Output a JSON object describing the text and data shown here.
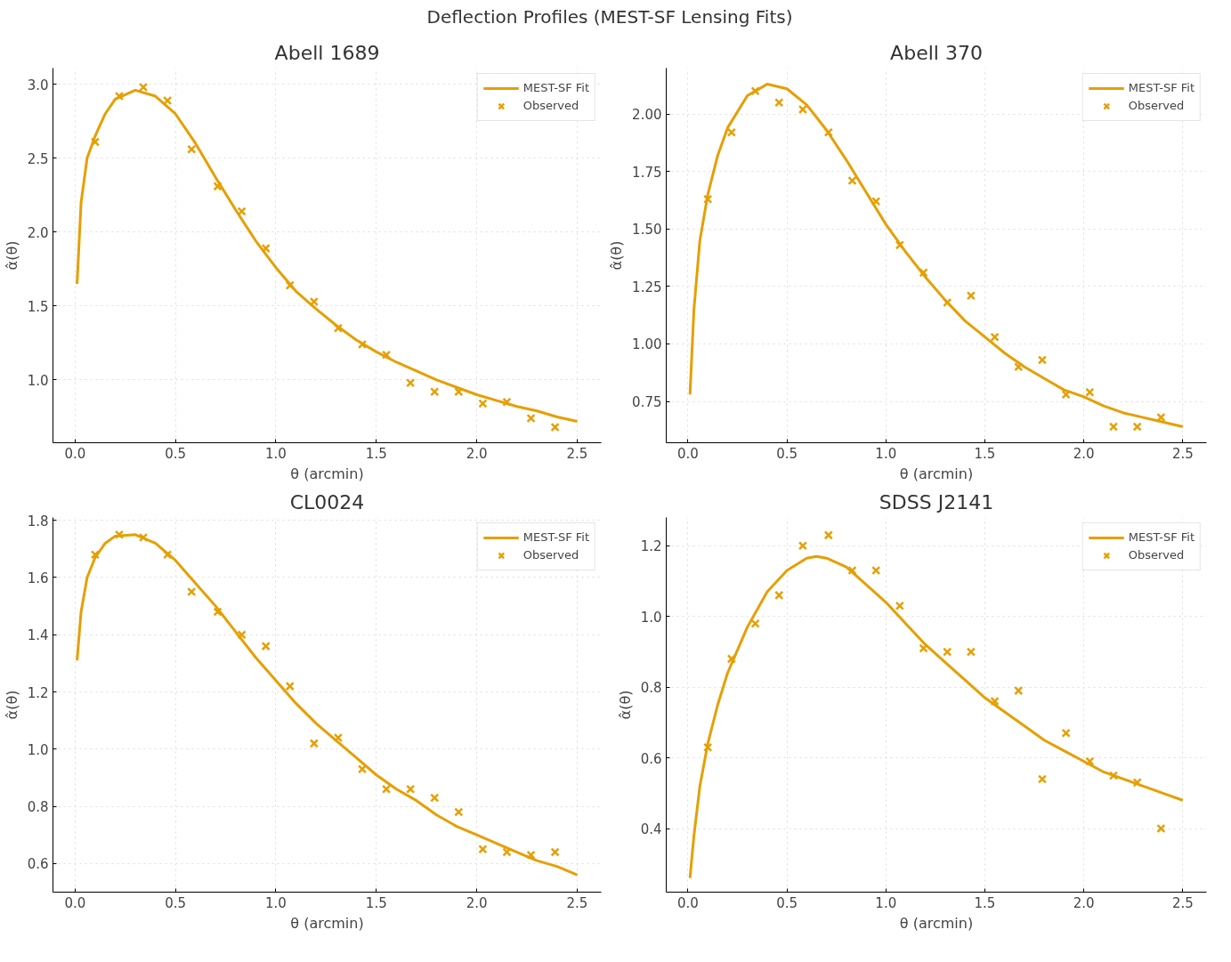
{
  "chart_data": [
    {
      "type": "scatter",
      "title": "Abell 1689",
      "xlabel": "θ (arcmin)",
      "ylabel": "α̂(θ)",
      "annotations": [
        "Deflection Profiles (MEST-SF Lensing Fits)"
      ],
      "xlim": [
        -0.11,
        2.62
      ],
      "ylim": [
        0.575,
        3.11
      ],
      "xticks": [
        {
          "value": 0,
          "label": "0.0"
        },
        0.5,
        {
          "value": 1,
          "label": "1.0"
        },
        1.5,
        {
          "value": 2,
          "label": "2.0"
        },
        2.5
      ],
      "yticks": [
        {
          "value": 1,
          "label": "1.0"
        },
        1.5,
        {
          "value": 2,
          "label": "2.0"
        },
        2.5,
        {
          "value": 3,
          "label": "3.0"
        }
      ],
      "grid": true,
      "legend": "top right",
      "series": [
        {
          "name": "MEST-SF Fit",
          "type": "line",
          "color": "#e69f00",
          "line_style": "solid",
          "x": [
            0.01,
            0.03,
            0.06,
            0.1,
            0.15,
            0.2,
            0.3,
            0.4,
            0.5,
            0.6,
            0.7,
            0.8,
            0.9,
            1.0,
            1.1,
            1.2,
            1.3,
            1.4,
            1.5,
            1.6,
            1.7,
            1.8,
            1.9,
            2.0,
            2.1,
            2.2,
            2.3,
            2.4,
            2.5
          ],
          "values": [
            1.65,
            2.2,
            2.5,
            2.65,
            2.8,
            2.9,
            2.96,
            2.92,
            2.8,
            2.6,
            2.37,
            2.15,
            1.94,
            1.76,
            1.6,
            1.48,
            1.37,
            1.27,
            1.19,
            1.12,
            1.06,
            1.0,
            0.95,
            0.9,
            0.86,
            0.82,
            0.79,
            0.75,
            0.72
          ]
        },
        {
          "name": "Observed",
          "marker": "cross",
          "color": "#e69f00",
          "x": [
            0.1,
            0.22,
            0.34,
            0.46,
            0.58,
            0.71,
            0.83,
            0.95,
            1.07,
            1.19,
            1.31,
            1.43,
            1.55,
            1.67,
            1.79,
            1.91,
            2.03,
            2.15,
            2.27,
            2.39
          ],
          "values": [
            2.61,
            2.92,
            2.98,
            2.89,
            2.56,
            2.31,
            2.14,
            1.89,
            1.64,
            1.53,
            1.35,
            1.24,
            1.17,
            0.98,
            0.92,
            0.92,
            0.84,
            0.85,
            0.74,
            0.68
          ]
        }
      ]
    },
    {
      "type": "scatter",
      "title": "Abell 370",
      "xlabel": "θ (arcmin)",
      "ylabel": "α̂(θ)",
      "xlim": [
        -0.11,
        2.62
      ],
      "ylim": [
        0.57,
        2.2
      ],
      "xticks": [
        {
          "value": 0,
          "label": "0.0"
        },
        0.5,
        {
          "value": 1,
          "label": "1.0"
        },
        1.5,
        {
          "value": 2,
          "label": "2.0"
        },
        2.5
      ],
      "yticks": [
        0.75,
        {
          "value": 1,
          "label": "1.00"
        },
        1.25,
        {
          "value": 1.5,
          "label": "1.50"
        },
        1.75,
        {
          "value": 2,
          "label": "2.00"
        }
      ],
      "grid": true,
      "legend": "top right",
      "series": [
        {
          "name": "MEST-SF Fit",
          "type": "line",
          "color": "#e69f00",
          "line_style": "solid",
          "x": [
            0.01,
            0.03,
            0.06,
            0.1,
            0.15,
            0.2,
            0.3,
            0.4,
            0.5,
            0.6,
            0.7,
            0.8,
            0.9,
            1.0,
            1.1,
            1.2,
            1.3,
            1.4,
            1.5,
            1.6,
            1.7,
            1.8,
            1.9,
            2.0,
            2.1,
            2.2,
            2.3,
            2.4,
            2.5
          ],
          "values": [
            0.78,
            1.15,
            1.45,
            1.65,
            1.82,
            1.94,
            2.08,
            2.13,
            2.11,
            2.04,
            1.93,
            1.8,
            1.66,
            1.52,
            1.4,
            1.29,
            1.19,
            1.1,
            1.03,
            0.96,
            0.9,
            0.85,
            0.8,
            0.77,
            0.73,
            0.7,
            0.68,
            0.66,
            0.64
          ]
        },
        {
          "name": "Observed",
          "marker": "cross",
          "color": "#e69f00",
          "x": [
            0.1,
            0.22,
            0.34,
            0.46,
            0.58,
            0.71,
            0.83,
            0.95,
            1.07,
            1.19,
            1.31,
            1.43,
            1.55,
            1.67,
            1.79,
            1.91,
            2.03,
            2.15,
            2.27,
            2.39
          ],
          "values": [
            1.63,
            1.92,
            2.1,
            2.05,
            2.02,
            1.92,
            1.71,
            1.62,
            1.43,
            1.31,
            1.18,
            1.21,
            1.03,
            0.9,
            0.93,
            0.78,
            0.79,
            0.64,
            0.64,
            0.68
          ]
        }
      ]
    },
    {
      "type": "scatter",
      "title": "CL0024",
      "xlabel": "θ (arcmin)",
      "ylabel": "α̂(θ)",
      "xlim": [
        -0.11,
        2.62
      ],
      "ylim": [
        0.5,
        1.81
      ],
      "xticks": [
        {
          "value": 0,
          "label": "0.0"
        },
        0.5,
        {
          "value": 1,
          "label": "1.0"
        },
        1.5,
        {
          "value": 2,
          "label": "2.0"
        },
        2.5
      ],
      "yticks": [
        0.6,
        0.8,
        {
          "value": 1,
          "label": "1.0"
        },
        1.2,
        1.4,
        1.6,
        1.8
      ],
      "grid": true,
      "legend": "top right",
      "series": [
        {
          "name": "MEST-SF Fit",
          "type": "line",
          "color": "#e69f00",
          "line_style": "solid",
          "x": [
            0.01,
            0.03,
            0.06,
            0.1,
            0.15,
            0.2,
            0.3,
            0.4,
            0.5,
            0.6,
            0.7,
            0.8,
            0.9,
            1.0,
            1.1,
            1.2,
            1.3,
            1.4,
            1.5,
            1.6,
            1.7,
            1.8,
            1.9,
            2.0,
            2.1,
            2.2,
            2.3,
            2.4,
            2.5
          ],
          "values": [
            1.31,
            1.48,
            1.6,
            1.67,
            1.72,
            1.745,
            1.75,
            1.72,
            1.66,
            1.58,
            1.5,
            1.41,
            1.32,
            1.24,
            1.16,
            1.09,
            1.03,
            0.97,
            0.91,
            0.86,
            0.82,
            0.77,
            0.73,
            0.7,
            0.67,
            0.64,
            0.61,
            0.59,
            0.56
          ]
        },
        {
          "name": "Observed",
          "marker": "cross",
          "color": "#e69f00",
          "x": [
            0.1,
            0.22,
            0.34,
            0.46,
            0.58,
            0.71,
            0.83,
            0.95,
            1.07,
            1.19,
            1.31,
            1.43,
            1.55,
            1.67,
            1.79,
            1.91,
            2.03,
            2.15,
            2.27,
            2.39
          ],
          "values": [
            1.68,
            1.75,
            1.74,
            1.68,
            1.55,
            1.48,
            1.4,
            1.36,
            1.22,
            1.02,
            1.04,
            0.93,
            0.86,
            0.86,
            0.83,
            0.78,
            0.65,
            0.64,
            0.63,
            0.64
          ]
        }
      ]
    },
    {
      "type": "scatter",
      "title": "SDSS J2141",
      "xlabel": "θ (arcmin)",
      "ylabel": "α̂(θ)",
      "xlim": [
        -0.11,
        2.62
      ],
      "ylim": [
        0.22,
        1.28
      ],
      "xticks": [
        {
          "value": 0,
          "label": "0.0"
        },
        0.5,
        {
          "value": 1,
          "label": "1.0"
        },
        1.5,
        {
          "value": 2,
          "label": "2.0"
        },
        2.5
      ],
      "yticks": [
        0.4,
        0.6,
        0.8,
        {
          "value": 1,
          "label": "1.0"
        },
        1.2
      ],
      "grid": true,
      "legend": "top right",
      "series": [
        {
          "name": "MEST-SF Fit",
          "type": "line",
          "color": "#e69f00",
          "line_style": "solid",
          "x": [
            0.01,
            0.03,
            0.06,
            0.1,
            0.15,
            0.2,
            0.3,
            0.4,
            0.5,
            0.6,
            0.65,
            0.7,
            0.8,
            0.9,
            1.0,
            1.1,
            1.2,
            1.3,
            1.4,
            1.5,
            1.6,
            1.7,
            1.8,
            1.9,
            2.0,
            2.1,
            2.2,
            2.3,
            2.4,
            2.5
          ],
          "values": [
            0.26,
            0.38,
            0.52,
            0.64,
            0.75,
            0.84,
            0.97,
            1.07,
            1.13,
            1.165,
            1.17,
            1.165,
            1.14,
            1.09,
            1.04,
            0.98,
            0.92,
            0.87,
            0.82,
            0.77,
            0.73,
            0.69,
            0.65,
            0.62,
            0.59,
            0.56,
            0.54,
            0.52,
            0.5,
            0.48
          ]
        },
        {
          "name": "Observed",
          "marker": "cross",
          "color": "#e69f00",
          "x": [
            0.1,
            0.22,
            0.34,
            0.46,
            0.58,
            0.71,
            0.83,
            0.95,
            1.07,
            1.19,
            1.31,
            1.43,
            1.55,
            1.67,
            1.79,
            1.91,
            2.03,
            2.15,
            2.27,
            2.39
          ],
          "values": [
            0.63,
            0.88,
            0.98,
            1.06,
            1.2,
            1.23,
            1.13,
            1.13,
            1.03,
            0.91,
            0.9,
            0.9,
            0.76,
            0.79,
            0.54,
            0.67,
            0.59,
            0.55,
            0.53,
            0.4
          ]
        }
      ]
    }
  ]
}
